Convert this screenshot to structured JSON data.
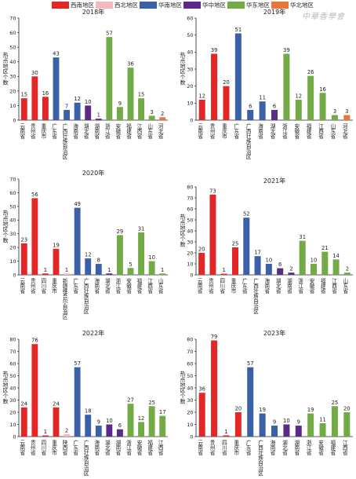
{
  "legend": [
    {
      "label": "西南地区",
      "color": "#e32626"
    },
    {
      "label": "西北地区",
      "color": "#f4b8bf"
    },
    {
      "label": "华南地区",
      "color": "#3a60a8"
    },
    {
      "label": "华中地区",
      "color": "#5b2a86"
    },
    {
      "label": "华东地区",
      "color": "#72aa45"
    },
    {
      "label": "华北地区",
      "color": "#e8763a"
    }
  ],
  "watermark": "中華香學會",
  "chart_data": [
    {
      "type": "bar",
      "title": "2018年",
      "ylabel": "热点地区个数",
      "ylim": [
        0,
        70
      ],
      "yticks": [
        0,
        10,
        20,
        30,
        40,
        50,
        60,
        70
      ],
      "grid": false,
      "categories": [
        "云南省",
        "贵州省",
        "重庆市",
        "广东省",
        "广西壮族自治区",
        "海南省",
        "湖北省",
        "湖南省",
        "浙江省",
        "安徽省",
        "福建省",
        "江西省",
        "山东省",
        "河北省"
      ],
      "values": [
        15,
        30,
        16,
        43,
        7,
        12,
        10,
        1,
        57,
        9,
        36,
        15,
        3,
        2
      ],
      "regions": [
        "西南地区",
        "西南地区",
        "西南地区",
        "华南地区",
        "华南地区",
        "华南地区",
        "华中地区",
        "华中地区",
        "华东地区",
        "华东地区",
        "华东地区",
        "华东地区",
        "华东地区",
        "华北地区"
      ]
    },
    {
      "type": "bar",
      "title": "2019年",
      "ylabel": "热点地区个数",
      "ylim": [
        0,
        60
      ],
      "yticks": [
        0,
        10,
        20,
        30,
        40,
        50,
        60
      ],
      "grid": false,
      "categories": [
        "云南省",
        "贵州省",
        "重庆市",
        "广东省",
        "广西壮族自治区",
        "海南省",
        "湖北省",
        "浙江省",
        "安徽省",
        "福建省",
        "江西省",
        "山东省",
        "河北省"
      ],
      "values": [
        12,
        39,
        20,
        51,
        6,
        11,
        6,
        39,
        12,
        26,
        16,
        3,
        3
      ],
      "regions": [
        "西南地区",
        "西南地区",
        "西南地区",
        "华南地区",
        "华南地区",
        "华南地区",
        "华中地区",
        "华东地区",
        "华东地区",
        "华东地区",
        "华东地区",
        "华东地区",
        "华北地区"
      ]
    },
    {
      "type": "bar",
      "title": "2020年",
      "ylabel": "热点地区个数",
      "ylim": [
        0,
        70
      ],
      "yticks": [
        0,
        10,
        20,
        30,
        40,
        50,
        60,
        70
      ],
      "grid": false,
      "categories": [
        "云南省",
        "贵州省",
        "四川省",
        "重庆市",
        "新疆维吾尔自治区",
        "广东省",
        "广西壮族自治区",
        "海南省",
        "湖北省",
        "浙江省",
        "安徽省",
        "福建省",
        "江西省",
        "山东省"
      ],
      "values": [
        23,
        56,
        1,
        19,
        1,
        49,
        12,
        8,
        1,
        29,
        5,
        31,
        10,
        1
      ],
      "regions": [
        "西南地区",
        "西南地区",
        "西南地区",
        "西南地区",
        "西北地区",
        "华南地区",
        "华南地区",
        "华南地区",
        "华中地区",
        "华东地区",
        "华东地区",
        "华东地区",
        "华东地区",
        "华东地区"
      ]
    },
    {
      "type": "bar",
      "title": "2021年",
      "ylabel": "热点地区个数",
      "ylim": [
        0,
        80
      ],
      "yticks": [
        0,
        10,
        20,
        30,
        40,
        50,
        60,
        70,
        80
      ],
      "grid": false,
      "categories": [
        "云南省",
        "贵州省",
        "四川省",
        "重庆市",
        "广东省",
        "广西壮族自治区",
        "海南省",
        "湖北省",
        "湖南省",
        "浙江省",
        "安徽省",
        "福建省",
        "江西省",
        "山东省"
      ],
      "values": [
        20,
        73,
        1,
        25,
        52,
        17,
        10,
        6,
        2,
        31,
        10,
        21,
        14,
        2
      ],
      "regions": [
        "西南地区",
        "西南地区",
        "西南地区",
        "西南地区",
        "华南地区",
        "华南地区",
        "华南地区",
        "华中地区",
        "华中地区",
        "华东地区",
        "华东地区",
        "华东地区",
        "华东地区",
        "华东地区"
      ]
    },
    {
      "type": "bar",
      "title": "2022年",
      "ylabel": "热点地区个数",
      "ylim": [
        0,
        80
      ],
      "yticks": [
        0,
        10,
        20,
        30,
        40,
        50,
        60,
        70,
        80
      ],
      "grid": false,
      "categories": [
        "云南省",
        "贵州省",
        "四川省",
        "重庆市",
        "陕西省",
        "广东省",
        "广西壮族自治区",
        "海南省",
        "湖北省",
        "湖南省",
        "浙江省",
        "安徽省",
        "福建省",
        "江西省"
      ],
      "values": [
        24,
        76,
        1,
        24,
        2,
        57,
        18,
        9,
        10,
        6,
        27,
        12,
        25,
        17
      ],
      "regions": [
        "西南地区",
        "西南地区",
        "西南地区",
        "西南地区",
        "西北地区",
        "华南地区",
        "华南地区",
        "华南地区",
        "华中地区",
        "华中地区",
        "华东地区",
        "华东地区",
        "华东地区",
        "华东地区"
      ]
    },
    {
      "type": "bar",
      "title": "2023年",
      "ylabel": "热点地区个数",
      "ylim": [
        0,
        80
      ],
      "yticks": [
        0,
        10,
        20,
        30,
        40,
        50,
        60,
        70,
        80
      ],
      "grid": false,
      "categories": [
        "云南省",
        "贵州省",
        "四川省",
        "重庆市",
        "广东省",
        "广西壮族自治区",
        "海南省",
        "湖北省",
        "湖南省",
        "浙江省",
        "安徽省",
        "福建省",
        "江西省"
      ],
      "values": [
        36,
        79,
        1,
        20,
        57,
        19,
        9,
        10,
        9,
        19,
        11,
        25,
        20
      ],
      "regions": [
        "西南地区",
        "西南地区",
        "西南地区",
        "西南地区",
        "华南地区",
        "华南地区",
        "华南地区",
        "华中地区",
        "华中地区",
        "华东地区",
        "华东地区",
        "华东地区",
        "华东地区"
      ]
    }
  ]
}
